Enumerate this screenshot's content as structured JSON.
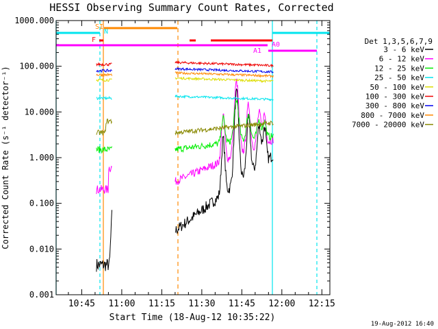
{
  "chart_data": {
    "type": "line",
    "title": "HESSI Observing Summary Count Rates, Corrected",
    "xlabel": "Start Time (18-Aug-12 10:35:22)",
    "ylabel": "Corrected Count Rate (s⁻¹ detector⁻¹)",
    "yscale": "log",
    "ylim": [
      0.001,
      1000
    ],
    "xlim_minutes": [
      35.4,
      138.0
    ],
    "x_ticks": [
      {
        "m": 45,
        "label": "10:45"
      },
      {
        "m": 60,
        "label": "11:00"
      },
      {
        "m": 75,
        "label": "11:15"
      },
      {
        "m": 90,
        "label": "11:30"
      },
      {
        "m": 105,
        "label": "11:45"
      },
      {
        "m": 120,
        "label": "12:00"
      },
      {
        "m": 135,
        "label": "12:15"
      }
    ],
    "y_ticks": [
      {
        "v": 1000,
        "label": "1000.000"
      },
      {
        "v": 100,
        "label": "100.000"
      },
      {
        "v": 10,
        "label": "10.000"
      },
      {
        "v": 1,
        "label": "1.000"
      },
      {
        "v": 0.1,
        "label": "0.100"
      },
      {
        "v": 0.01,
        "label": "0.010"
      },
      {
        "v": 0.001,
        "label": "0.001"
      }
    ],
    "legend_title": "Det 1,3,5,6,7,9",
    "legend_placement": "right",
    "series": [
      {
        "name": "3 - 6 keV",
        "color": "#000000",
        "level": 0.0045
      },
      {
        "name": "6 - 12 keV",
        "color": "#ff00ff",
        "level": 0.2
      },
      {
        "name": "12 - 25 keV",
        "color": "#00ee00",
        "level": 1.5
      },
      {
        "name": "25 - 50 keV",
        "color": "#00e5ee",
        "level": 20
      },
      {
        "name": "50 - 100 keV",
        "color": "#dddd00",
        "level": 50
      },
      {
        "name": "100 - 300 keV",
        "color": "#ee0000",
        "level": 110
      },
      {
        "name": "300 - 800 keV",
        "color": "#0000ee",
        "level": 80
      },
      {
        "name": "800 - 7000 keV",
        "color": "#ff8800",
        "level": 65
      },
      {
        "name": "7000 - 20000 keV",
        "color": "#888800",
        "level": 3.5
      }
    ],
    "flags": [
      {
        "label": "SI",
        "color": "#ff8800"
      },
      {
        "label": "N",
        "color": "#00e5ee"
      },
      {
        "label": "F",
        "color": "#ff0000"
      },
      {
        "label": "A0",
        "color": "#ff00ff"
      },
      {
        "label": "A1",
        "color": "#ff00ff"
      }
    ],
    "annotation": "19-Aug-2012 16:40"
  }
}
